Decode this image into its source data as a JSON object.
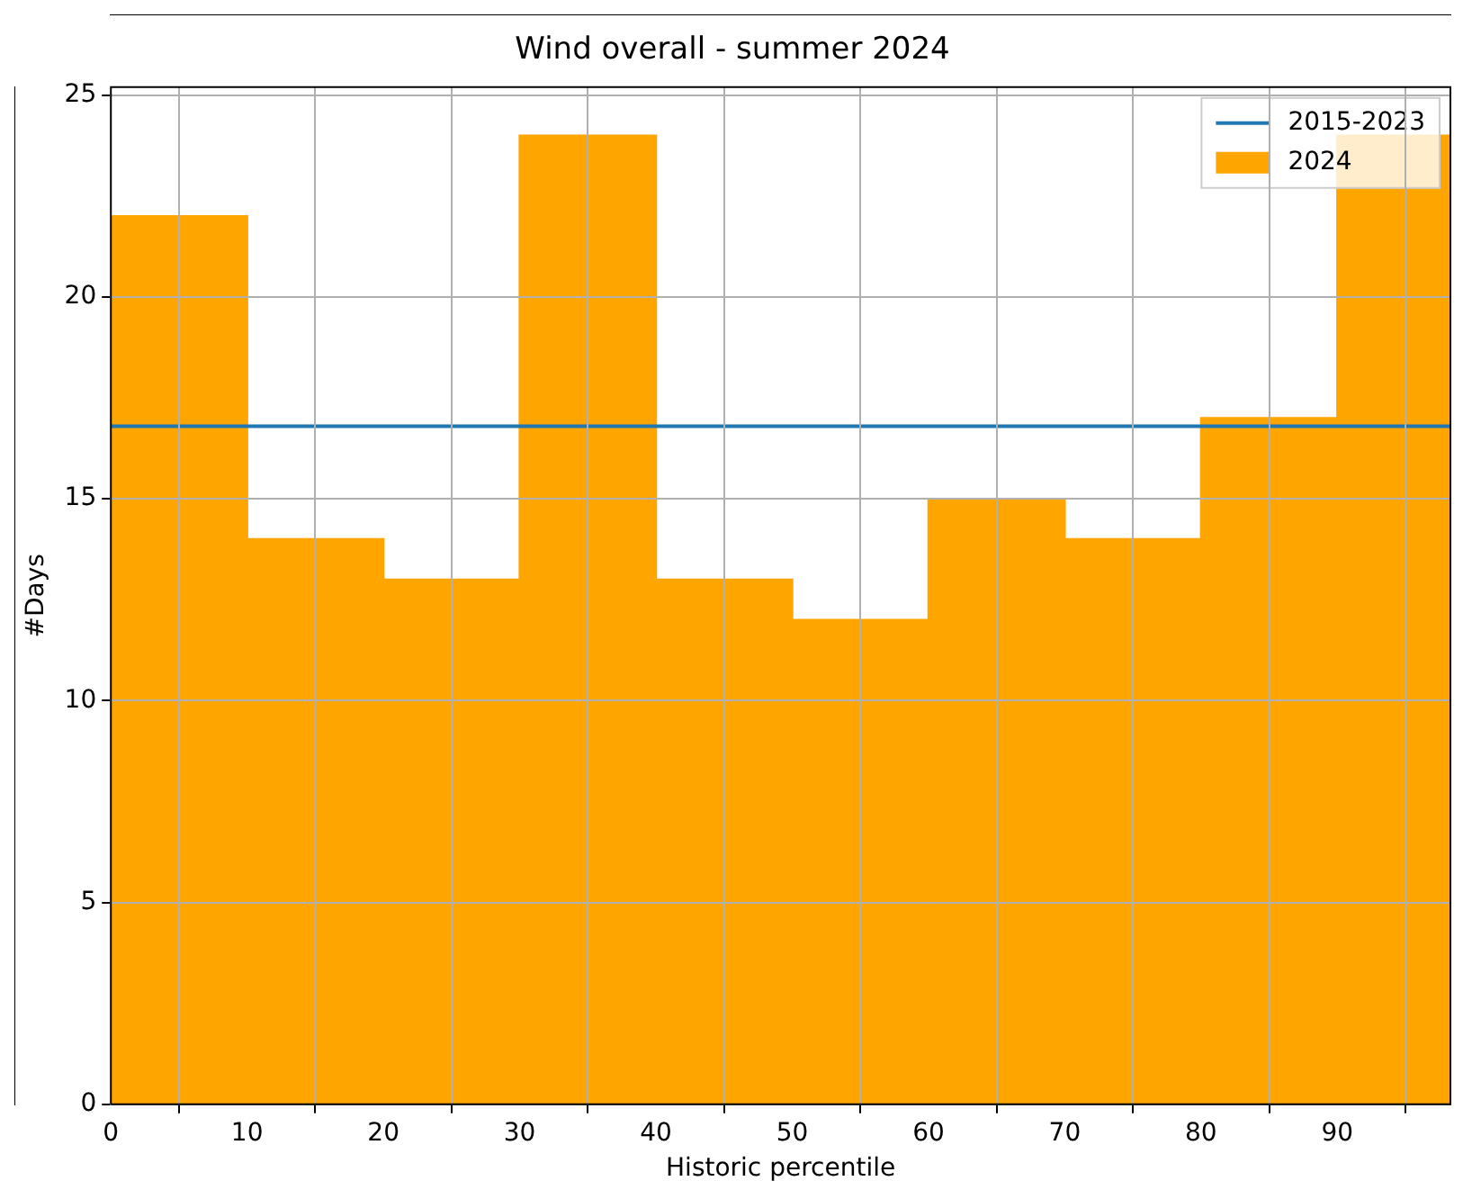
{
  "chart_data": {
    "type": "histogram",
    "title": "Wind overall - summer 2024",
    "xlabel": "Historic percentile",
    "ylabel": "#Days",
    "bins": [
      0,
      10,
      20,
      30,
      40,
      50,
      60,
      70,
      80,
      90,
      98.3
    ],
    "series": [
      {
        "name": "2015-2023",
        "type": "line",
        "color": "#1f77b4",
        "x": [
          0,
          98.3
        ],
        "values": [
          16.8,
          16.8
        ]
      },
      {
        "name": "2024",
        "type": "histogram",
        "color": "#ffa500",
        "values": [
          22,
          14,
          13,
          24,
          13,
          12,
          15,
          14,
          17,
          24
        ]
      }
    ],
    "xlim": [
      0,
      98.3
    ],
    "xticks": [
      0,
      10,
      20,
      30,
      40,
      50,
      60,
      70,
      80,
      90
    ],
    "ylim": [
      0,
      25.2
    ],
    "yticks": [
      0,
      5,
      10,
      15,
      20,
      25
    ],
    "grid": true,
    "legend": "top right"
  }
}
